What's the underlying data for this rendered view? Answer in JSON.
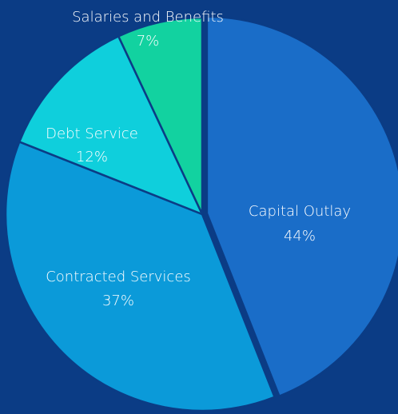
{
  "chart_data": {
    "type": "pie",
    "categories": [
      "Capital Outlay",
      "Contracted Services",
      "Debt Service",
      "Salaries and Benefits"
    ],
    "values": [
      44,
      37,
      12,
      7
    ],
    "value_labels": [
      "44%",
      "37%",
      "12%",
      "7%"
    ],
    "colors": [
      "#1a6dc8",
      "#0b9ad9",
      "#0fcfdc",
      "#12d2a0"
    ]
  }
}
